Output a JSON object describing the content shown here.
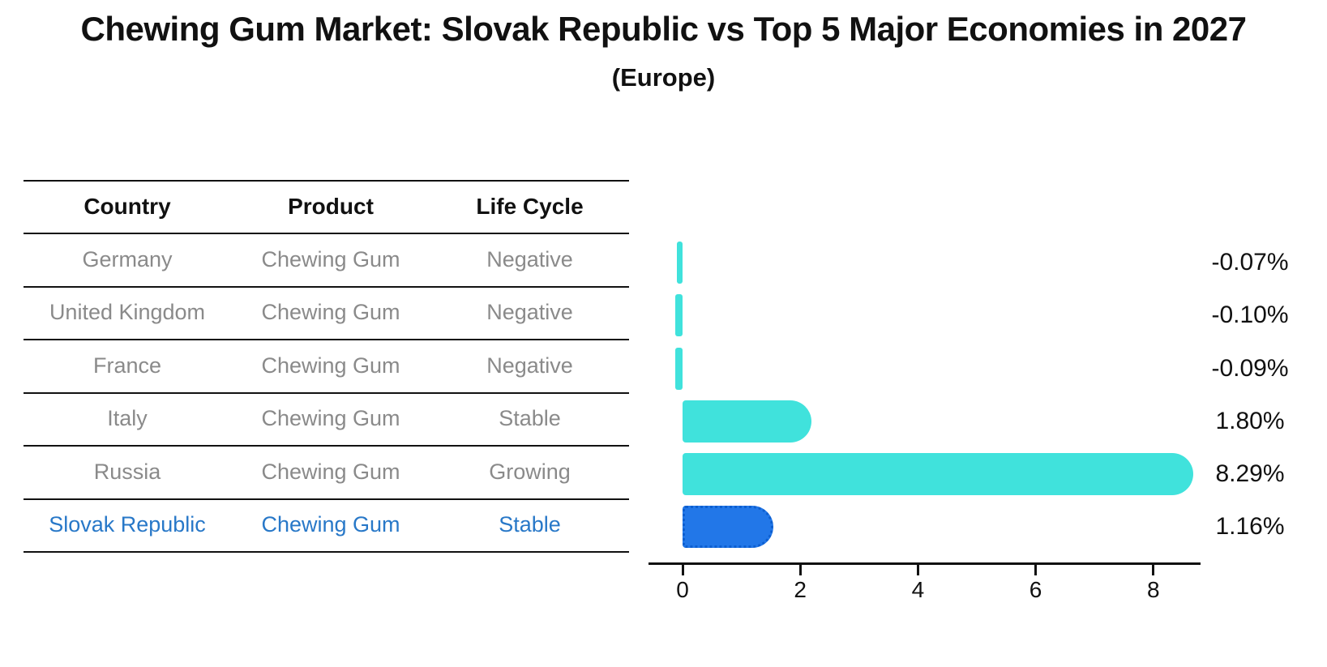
{
  "title": "Chewing Gum Market: Slovak Republic vs Top 5 Major Economies in 2027",
  "subtitle": "(Europe)",
  "table": {
    "headers": {
      "country": "Country",
      "product": "Product",
      "life_cycle": "Life Cycle"
    },
    "rows": [
      {
        "country": "Germany",
        "product": "Chewing Gum",
        "life_cycle": "Negative",
        "highlighted": false
      },
      {
        "country": "United Kingdom",
        "product": "Chewing Gum",
        "life_cycle": "Negative",
        "highlighted": false
      },
      {
        "country": "France",
        "product": "Chewing Gum",
        "life_cycle": "Negative",
        "highlighted": false
      },
      {
        "country": "Italy",
        "product": "Chewing Gum",
        "life_cycle": "Stable",
        "highlighted": false
      },
      {
        "country": "Russia",
        "product": "Chewing Gum",
        "life_cycle": "Growing",
        "highlighted": false
      },
      {
        "country": "Slovak Republic",
        "product": "Chewing Gum",
        "life_cycle": "Stable",
        "highlighted": true
      }
    ]
  },
  "chart_data": {
    "type": "bar",
    "orientation": "horizontal",
    "title": "Chewing Gum Market: Slovak Republic vs Top 5 Major Economies in 2027 (Europe)",
    "categories": [
      "Germany",
      "United Kingdom",
      "France",
      "Italy",
      "Russia",
      "Slovak Republic"
    ],
    "values": [
      -0.07,
      -0.1,
      -0.09,
      1.8,
      8.29,
      1.16
    ],
    "value_labels": [
      "-0.07%",
      "-0.10%",
      "-0.09%",
      "1.80%",
      "8.29%",
      "1.16%"
    ],
    "x_ticks": [
      0,
      2,
      4,
      6,
      8
    ],
    "xlim": [
      -0.6,
      8.8
    ],
    "grid": false,
    "legend": false,
    "highlight_index": 5
  },
  "colors": {
    "bar": "#40e2dc",
    "highlight_fill": "#2277e8",
    "highlight_border": "#0d5fd0",
    "text": "#111111",
    "muted_text": "#8a8a8a",
    "highlight_text": "#2878c8"
  }
}
